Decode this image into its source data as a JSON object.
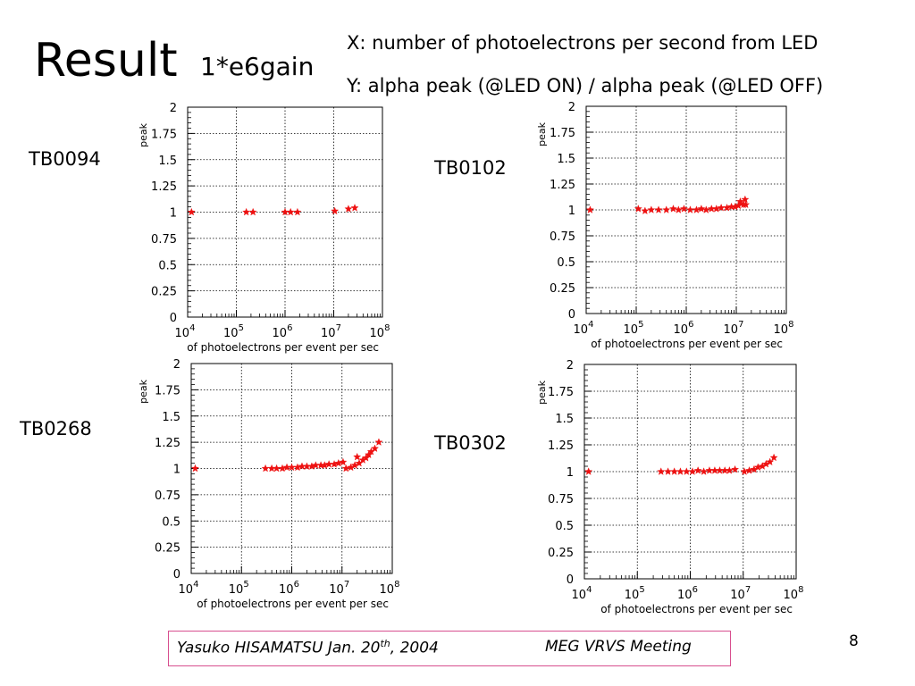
{
  "slide": {
    "title": "Result",
    "subtitle": "1*e6gain",
    "desc_x": "X: number of photoelectrons per second from LED",
    "desc_y": "Y: alpha peak (@LED ON) / alpha peak (@LED OFF)",
    "footer_author_date_pre": "Yasuko HISAMATSU Jan. 20",
    "footer_author_date_sup": "th",
    "footer_author_date_post": ", 2004",
    "footer_meeting": "MEG VRVS Meeting",
    "page_number": "8"
  },
  "chart_data": [
    {
      "type": "scatter",
      "label": "TB0094",
      "xlabel": "of photoelectrons per event per sec",
      "ylabel": "peak",
      "xscale": "log",
      "xlim": [
        10000.0,
        100000000.0
      ],
      "ylim": [
        0,
        2
      ],
      "grid": true,
      "marker": "star",
      "color": "#ee1111",
      "xticks": [
        "10^4",
        "10^5",
        "10^6",
        "10^7",
        "10^8"
      ],
      "yticks": [
        "0",
        "0.25",
        "0.5",
        "0.75",
        "1",
        "1.25",
        "1.5",
        "1.75",
        "2"
      ],
      "points": [
        [
          12000.0,
          1.0
        ],
        [
          160000.0,
          1.0
        ],
        [
          220000.0,
          1.0
        ],
        [
          1000000.0,
          1.0
        ],
        [
          1300000.0,
          1.0
        ],
        [
          1800000.0,
          1.0
        ],
        [
          10500000.0,
          1.01
        ],
        [
          20000000.0,
          1.03
        ],
        [
          27000000.0,
          1.04
        ]
      ]
    },
    {
      "type": "scatter",
      "label": "TB0102",
      "xlabel": "of photoelectrons per event per sec",
      "ylabel": "peak",
      "xscale": "log",
      "xlim": [
        10000.0,
        100000000.0
      ],
      "ylim": [
        0,
        2
      ],
      "grid": true,
      "marker": "star",
      "color": "#ee1111",
      "xticks": [
        "10^4",
        "10^5",
        "10^6",
        "10^7",
        "10^8"
      ],
      "yticks": [
        "0",
        "0.25",
        "0.5",
        "0.75",
        "1",
        "1.25",
        "1.5",
        "1.75",
        "2"
      ],
      "points": [
        [
          12000.0,
          1.0
        ],
        [
          110000.0,
          1.01
        ],
        [
          150000.0,
          0.99
        ],
        [
          200000.0,
          1.0
        ],
        [
          280000.0,
          1.0
        ],
        [
          400000.0,
          1.0
        ],
        [
          550000.0,
          1.01
        ],
        [
          700000.0,
          1.0
        ],
        [
          900000.0,
          1.01
        ],
        [
          1200000.0,
          1.0
        ],
        [
          1600000.0,
          1.0
        ],
        [
          2000000.0,
          1.01
        ],
        [
          2500000.0,
          1.0
        ],
        [
          3200000.0,
          1.01
        ],
        [
          4000000.0,
          1.01
        ],
        [
          5000000.0,
          1.02
        ],
        [
          6500000.0,
          1.02
        ],
        [
          8000000.0,
          1.03
        ],
        [
          9500000.0,
          1.03
        ],
        [
          11000000.0,
          1.04
        ],
        [
          12500000.0,
          1.06
        ],
        [
          14000000.0,
          1.05
        ],
        [
          15500000.0,
          1.05
        ],
        [
          12000000.0,
          1.08
        ],
        [
          15000000.0,
          1.1
        ]
      ]
    },
    {
      "type": "scatter",
      "label": "TB0268",
      "xlabel": "of photoelectrons per event per sec",
      "ylabel": "peak",
      "xscale": "log",
      "xlim": [
        10000.0,
        100000000.0
      ],
      "ylim": [
        0,
        2
      ],
      "grid": true,
      "marker": "star",
      "color": "#ee1111",
      "xticks": [
        "10^4",
        "10^5",
        "10^6",
        "10^7",
        "10^8"
      ],
      "yticks": [
        "0",
        "0.25",
        "0.5",
        "0.75",
        "1",
        "1.25",
        "1.5",
        "1.75",
        "2"
      ],
      "points": [
        [
          12000.0,
          1.0
        ],
        [
          300000.0,
          1.0
        ],
        [
          400000.0,
          1.0
        ],
        [
          500000.0,
          1.0
        ],
        [
          650000.0,
          1.0
        ],
        [
          800000.0,
          1.01
        ],
        [
          1000000.0,
          1.01
        ],
        [
          1300000.0,
          1.01
        ],
        [
          1600000.0,
          1.02
        ],
        [
          2000000.0,
          1.02
        ],
        [
          2500000.0,
          1.02
        ],
        [
          3000000.0,
          1.03
        ],
        [
          3800000.0,
          1.03
        ],
        [
          4500000.0,
          1.03
        ],
        [
          5500000.0,
          1.04
        ],
        [
          7000000.0,
          1.04
        ],
        [
          8500000.0,
          1.05
        ],
        [
          10500000.0,
          1.06
        ],
        [
          12000000.0,
          1.0
        ],
        [
          15000000.0,
          1.01
        ],
        [
          18000000.0,
          1.03
        ],
        [
          22000000.0,
          1.05
        ],
        [
          26000000.0,
          1.08
        ],
        [
          30000000.0,
          1.1
        ],
        [
          34000000.0,
          1.13
        ],
        [
          20000000.0,
          1.11
        ],
        [
          38000000.0,
          1.16
        ],
        [
          45000000.0,
          1.19
        ],
        [
          54000000.0,
          1.25
        ]
      ]
    },
    {
      "type": "scatter",
      "label": "TB0302",
      "xlabel": "of photoelectrons per event per sec",
      "ylabel": "peak",
      "xscale": "log",
      "xlim": [
        10000.0,
        100000000.0
      ],
      "ylim": [
        0,
        2
      ],
      "grid": true,
      "marker": "star",
      "color": "#ee1111",
      "xticks": [
        "10^4",
        "10^5",
        "10^6",
        "10^7",
        "10^8"
      ],
      "yticks": [
        "0",
        "0.25",
        "0.5",
        "0.75",
        "1",
        "1.25",
        "1.5",
        "1.75",
        "2"
      ],
      "points": [
        [
          12000.0,
          1.0
        ],
        [
          280000.0,
          1.0
        ],
        [
          380000.0,
          1.0
        ],
        [
          500000.0,
          1.0
        ],
        [
          650000.0,
          1.0
        ],
        [
          850000.0,
          1.0
        ],
        [
          1100000.0,
          1.0
        ],
        [
          1400000.0,
          1.01
        ],
        [
          1800000.0,
          1.0
        ],
        [
          2300000.0,
          1.01
        ],
        [
          2900000.0,
          1.01
        ],
        [
          3600000.0,
          1.01
        ],
        [
          4500000.0,
          1.01
        ],
        [
          5500000.0,
          1.01
        ],
        [
          7000000.0,
          1.02
        ],
        [
          10500000.0,
          1.0
        ],
        [
          13000000.0,
          1.01
        ],
        [
          16000000.0,
          1.02
        ],
        [
          19000000.0,
          1.04
        ],
        [
          23000000.0,
          1.05
        ],
        [
          27000000.0,
          1.07
        ],
        [
          32000000.0,
          1.09
        ],
        [
          38000000.0,
          1.13
        ]
      ]
    }
  ]
}
